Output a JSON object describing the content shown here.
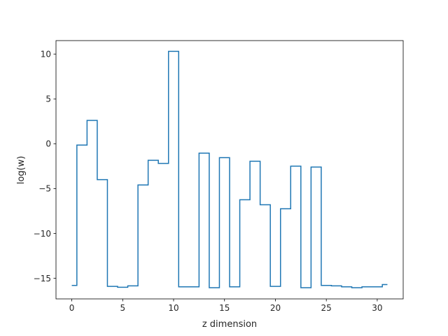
{
  "chart_data": {
    "type": "line",
    "drawstyle": "steps-mid",
    "xlabel": "z dimension",
    "ylabel": "log(w)",
    "xlim": [
      -1.55,
      32.55
    ],
    "ylim": [
      -17.3,
      11.5
    ],
    "xticks": [
      0,
      5,
      10,
      15,
      20,
      25,
      30
    ],
    "yticks": [
      -15,
      -10,
      -5,
      0,
      5,
      10
    ],
    "grid": false,
    "series": [
      {
        "color": "#1f77b4",
        "x": [
          0,
          1,
          2,
          3,
          4,
          5,
          6,
          7,
          8,
          9,
          10,
          11,
          12,
          13,
          14,
          15,
          16,
          17,
          18,
          19,
          20,
          21,
          22,
          23,
          24,
          25,
          26,
          27,
          28,
          29,
          30,
          31
        ],
        "y": [
          -15.8,
          -0.15,
          2.6,
          -4.0,
          -15.9,
          -16.0,
          -15.85,
          -4.6,
          -1.85,
          -2.2,
          10.3,
          -15.95,
          -15.95,
          -1.05,
          -16.05,
          -1.55,
          -15.95,
          -6.25,
          -1.95,
          -6.8,
          -15.9,
          -7.25,
          -2.5,
          -16.05,
          -2.6,
          -15.8,
          -15.85,
          -15.95,
          -16.05,
          -15.95,
          -15.95,
          -15.7
        ]
      }
    ]
  }
}
